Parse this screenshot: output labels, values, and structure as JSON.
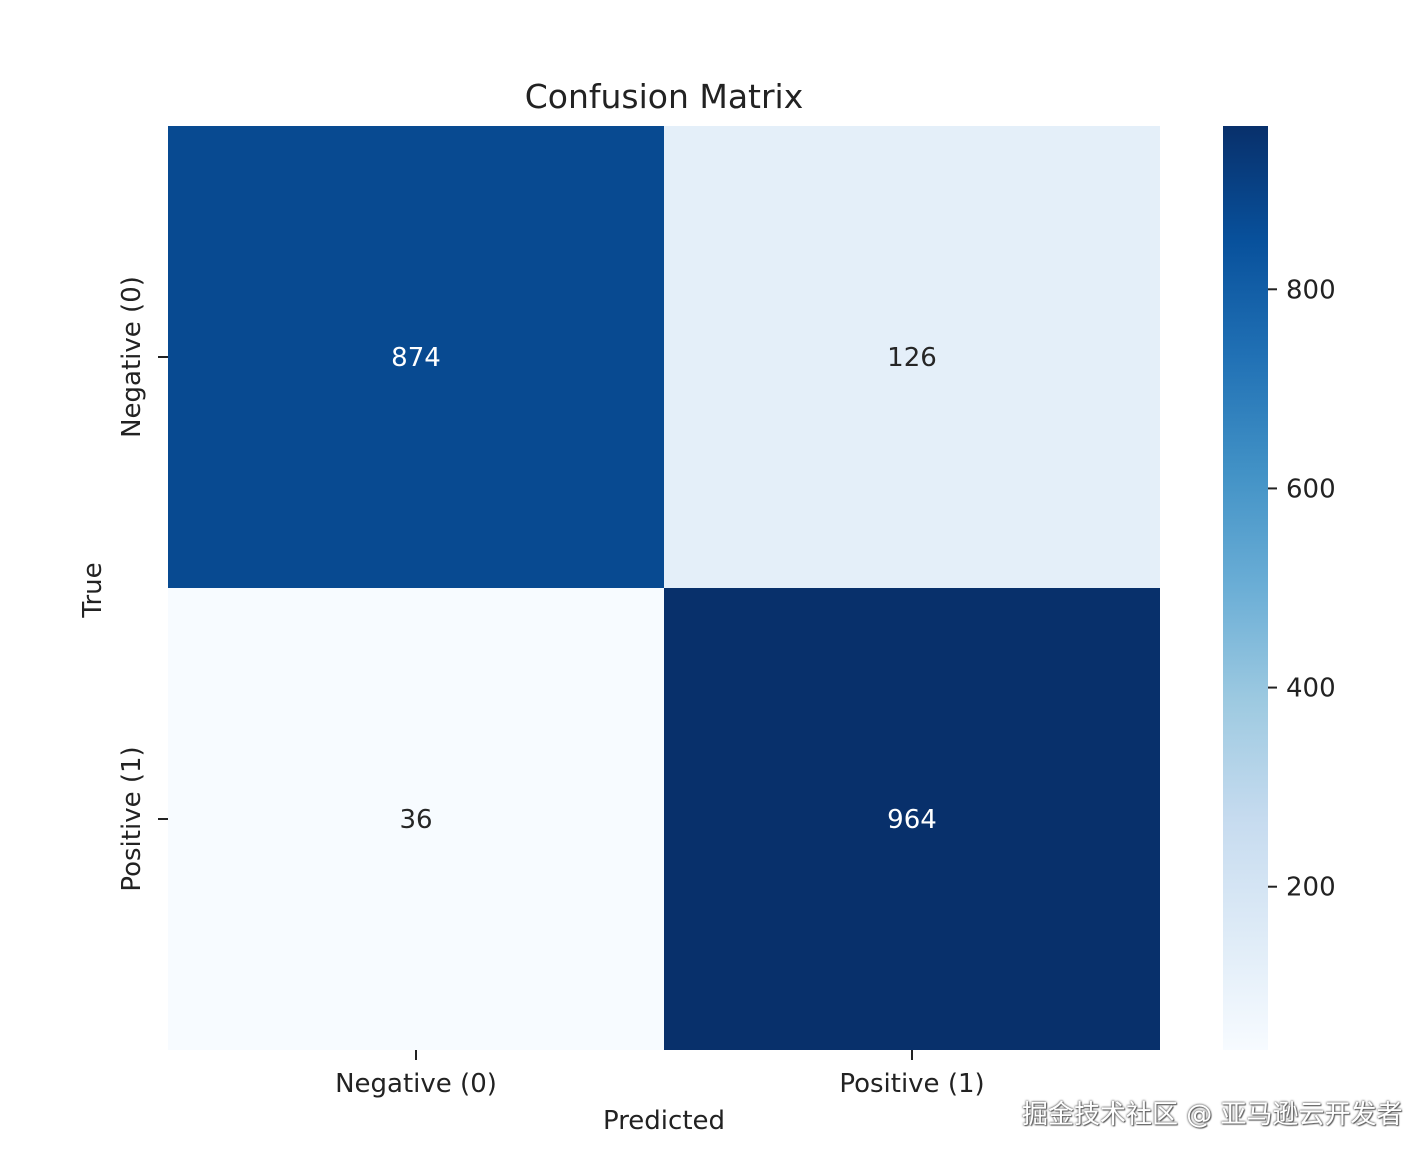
{
  "chart_data": {
    "type": "heatmap",
    "title": "Confusion Matrix",
    "xlabel": "Predicted",
    "ylabel": "True",
    "x_categories": [
      "Negative (0)",
      "Positive (1)"
    ],
    "y_categories": [
      "Negative (0)",
      "Positive (1)"
    ],
    "values": [
      [
        874,
        126
      ],
      [
        36,
        964
      ]
    ],
    "cell_labels": [
      [
        "874",
        "126"
      ],
      [
        "36",
        "964"
      ]
    ],
    "colormap": "Blues",
    "colorbar": {
      "min": 36,
      "max": 964,
      "ticks": [
        200,
        400,
        600,
        800
      ],
      "tick_labels": [
        "200",
        "400",
        "600",
        "800"
      ]
    },
    "grid": false
  },
  "watermark": {
    "text": "掘金技术社区 @ 亚马逊云开发者"
  },
  "colors": {
    "text": "#222222",
    "annot_light": "#ffffff",
    "annot_dark": "#262626",
    "blues": [
      "#f7fbff",
      "#deebf7",
      "#c6dbef",
      "#9ecae1",
      "#6baed6",
      "#4292c6",
      "#2171b5",
      "#08519c",
      "#08306b"
    ]
  }
}
